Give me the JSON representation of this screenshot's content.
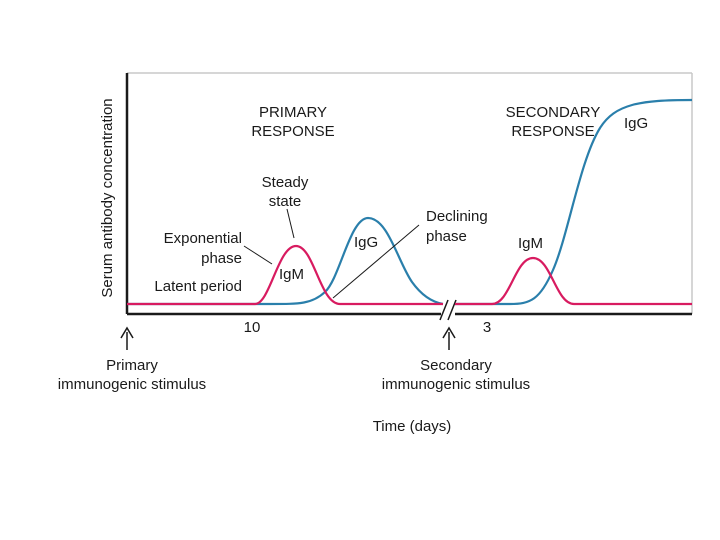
{
  "y_axis_label": "Serum antibody concentration",
  "x_axis_label": "Time (days)",
  "tick_primary": "10",
  "tick_secondary": "3",
  "primary_response_line1": "PRIMARY",
  "primary_response_line2": "RESPONSE",
  "secondary_response_line1": "SECONDARY",
  "secondary_response_line2": "RESPONSE",
  "steady_state_line1": "Steady",
  "steady_state_line2": "state",
  "exponential_line1": "Exponential",
  "exponential_line2": "phase",
  "latent_period": "Latent period",
  "declining_line1": "Declining",
  "declining_line2": "phase",
  "igm_primary": "IgM",
  "igg_primary": "IgG",
  "igm_secondary": "IgM",
  "igg_secondary": "IgG",
  "primary_stimulus_line1": "Primary",
  "primary_stimulus_line2": "immunogenic stimulus",
  "secondary_stimulus_line1": "Secondary",
  "secondary_stimulus_line2": "immunogenic stimulus",
  "colors": {
    "igm_curve": "#d81b60",
    "igg_curve": "#2a7fab",
    "frame": "#c8c8c8",
    "text": "#1a1a1a"
  }
}
